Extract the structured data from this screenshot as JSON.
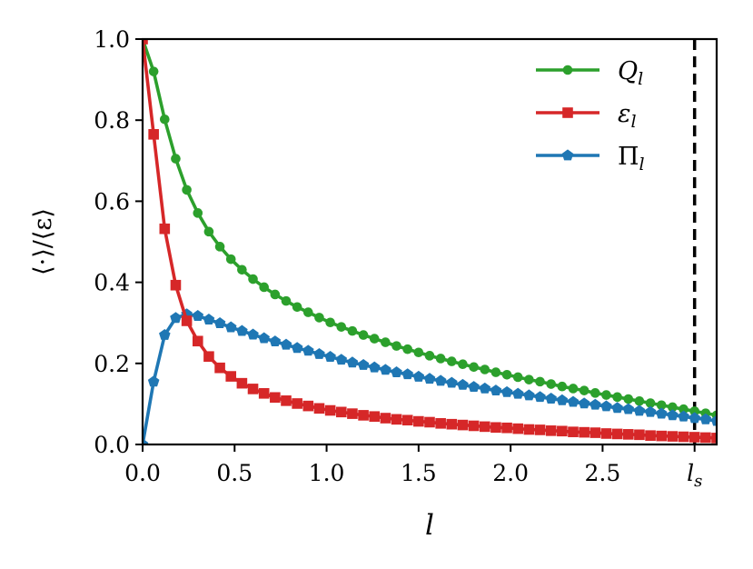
{
  "chart_data": {
    "type": "line",
    "xlabel": "l",
    "ylabel": "⟨·⟩/⟨ε⟩",
    "xlim": [
      0.0,
      3.12
    ],
    "ylim": [
      0.0,
      1.0
    ],
    "x_ticks": [
      0.0,
      0.5,
      1.0,
      1.5,
      2.0,
      2.5
    ],
    "x_tick_labels": [
      "0.0",
      "0.5",
      "1.0",
      "1.5",
      "2.0",
      "2.5"
    ],
    "extra_x_tick": {
      "value": 3.0,
      "label": "l",
      "sub": "s"
    },
    "y_ticks": [
      0.0,
      0.2,
      0.4,
      0.6,
      0.8,
      1.0
    ],
    "y_tick_labels": [
      "0.0",
      "0.2",
      "0.4",
      "0.6",
      "0.8",
      "1.0"
    ],
    "vline": {
      "x": 3.0,
      "style": "dashed",
      "color": "#000000"
    },
    "legend": {
      "placement": "top-right",
      "frame": false
    },
    "grid": false,
    "series": [
      {
        "name": "Q",
        "name_sub": "l",
        "color": "#2ca02c",
        "marker": "circle",
        "x": [
          0.0,
          0.06,
          0.12,
          0.18,
          0.24,
          0.3,
          0.36,
          0.42,
          0.48,
          0.54,
          0.6,
          0.66,
          0.72,
          0.78,
          0.84,
          0.9,
          0.96,
          1.02,
          1.08,
          1.14,
          1.2,
          1.26,
          1.32,
          1.38,
          1.44,
          1.5,
          1.56,
          1.62,
          1.68,
          1.74,
          1.8,
          1.86,
          1.92,
          1.98,
          2.04,
          2.1,
          2.16,
          2.22,
          2.28,
          2.34,
          2.4,
          2.46,
          2.52,
          2.58,
          2.64,
          2.7,
          2.76,
          2.82,
          2.88,
          2.94,
          3.0,
          3.06,
          3.12
        ],
        "y": [
          1.0,
          0.92,
          0.802,
          0.705,
          0.628,
          0.571,
          0.525,
          0.488,
          0.457,
          0.431,
          0.408,
          0.388,
          0.37,
          0.354,
          0.339,
          0.326,
          0.313,
          0.301,
          0.29,
          0.28,
          0.27,
          0.261,
          0.252,
          0.243,
          0.235,
          0.227,
          0.219,
          0.212,
          0.205,
          0.198,
          0.191,
          0.185,
          0.178,
          0.172,
          0.166,
          0.16,
          0.155,
          0.149,
          0.143,
          0.138,
          0.133,
          0.127,
          0.122,
          0.117,
          0.112,
          0.107,
          0.102,
          0.097,
          0.092,
          0.087,
          0.082,
          0.077,
          0.072
        ]
      },
      {
        "name": "ε",
        "name_sub": "l",
        "color": "#d62728",
        "marker": "square",
        "x": [
          0.0,
          0.06,
          0.12,
          0.18,
          0.24,
          0.3,
          0.36,
          0.42,
          0.48,
          0.54,
          0.6,
          0.66,
          0.72,
          0.78,
          0.84,
          0.9,
          0.96,
          1.02,
          1.08,
          1.14,
          1.2,
          1.26,
          1.32,
          1.38,
          1.44,
          1.5,
          1.56,
          1.62,
          1.68,
          1.74,
          1.8,
          1.86,
          1.92,
          1.98,
          2.04,
          2.1,
          2.16,
          2.22,
          2.28,
          2.34,
          2.4,
          2.46,
          2.52,
          2.58,
          2.64,
          2.7,
          2.76,
          2.82,
          2.88,
          2.94,
          3.0,
          3.06,
          3.12
        ],
        "y": [
          1.0,
          0.765,
          0.532,
          0.393,
          0.305,
          0.255,
          0.217,
          0.189,
          0.168,
          0.151,
          0.137,
          0.126,
          0.116,
          0.108,
          0.101,
          0.095,
          0.089,
          0.084,
          0.08,
          0.076,
          0.072,
          0.069,
          0.065,
          0.062,
          0.06,
          0.057,
          0.055,
          0.052,
          0.05,
          0.048,
          0.046,
          0.044,
          0.042,
          0.041,
          0.039,
          0.037,
          0.036,
          0.034,
          0.033,
          0.031,
          0.03,
          0.029,
          0.027,
          0.026,
          0.025,
          0.024,
          0.022,
          0.021,
          0.02,
          0.019,
          0.018,
          0.017,
          0.016
        ]
      },
      {
        "name": "Π",
        "name_sub": "l",
        "color": "#1f77b4",
        "marker": "pentagon",
        "x": [
          0.0,
          0.06,
          0.12,
          0.18,
          0.24,
          0.3,
          0.36,
          0.42,
          0.48,
          0.54,
          0.6,
          0.66,
          0.72,
          0.78,
          0.84,
          0.9,
          0.96,
          1.02,
          1.08,
          1.14,
          1.2,
          1.26,
          1.32,
          1.38,
          1.44,
          1.5,
          1.56,
          1.62,
          1.68,
          1.74,
          1.8,
          1.86,
          1.92,
          1.98,
          2.04,
          2.1,
          2.16,
          2.22,
          2.28,
          2.34,
          2.4,
          2.46,
          2.52,
          2.58,
          2.64,
          2.7,
          2.76,
          2.82,
          2.88,
          2.94,
          3.0,
          3.06,
          3.12
        ],
        "y": [
          0.0,
          0.155,
          0.27,
          0.312,
          0.321,
          0.317,
          0.308,
          0.299,
          0.289,
          0.28,
          0.271,
          0.262,
          0.254,
          0.246,
          0.238,
          0.231,
          0.223,
          0.216,
          0.209,
          0.202,
          0.196,
          0.19,
          0.184,
          0.178,
          0.173,
          0.167,
          0.162,
          0.157,
          0.152,
          0.147,
          0.142,
          0.138,
          0.133,
          0.129,
          0.125,
          0.121,
          0.117,
          0.113,
          0.109,
          0.105,
          0.101,
          0.098,
          0.094,
          0.09,
          0.087,
          0.083,
          0.08,
          0.076,
          0.072,
          0.069,
          0.065,
          0.062,
          0.058
        ]
      }
    ]
  }
}
